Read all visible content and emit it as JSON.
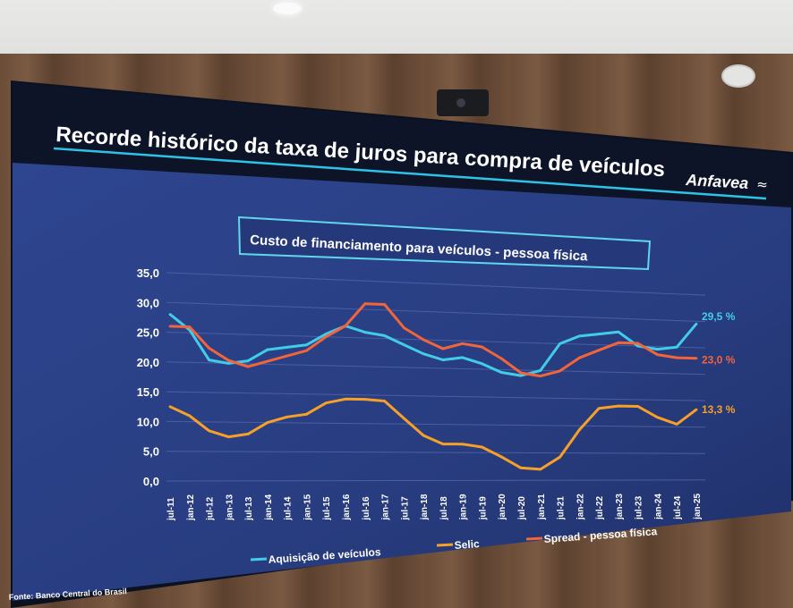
{
  "slide": {
    "title": "Recorde histórico da taxa de juros para compra de veículos",
    "logo_text": "Anfavea",
    "chart_heading": "Custo de financiamento para veículos - pessoa física",
    "source": "Fonte: Banco Central do Brasil"
  },
  "colors": {
    "panel_background": "#2b3f86",
    "title_bar": "#0e1428",
    "accent_line": "#2ec3e6",
    "aquisicao": "#41cde6",
    "selic": "#f6a028",
    "spread": "#f2643a"
  },
  "chart_data": {
    "type": "line",
    "title": "Custo de financiamento para veículos - pessoa física",
    "ylim": [
      0,
      35
    ],
    "yticks": [
      "0,0",
      "5,0",
      "10,0",
      "15,0",
      "20,0",
      "25,0",
      "30,0",
      "35,0"
    ],
    "x": [
      "jul-11",
      "jan-12",
      "jul-12",
      "jan-13",
      "jul-13",
      "jan-14",
      "jul-14",
      "jan-15",
      "jul-15",
      "jan-16",
      "jul-16",
      "jan-17",
      "jul-17",
      "jan-18",
      "jul-18",
      "jan-19",
      "jul-19",
      "jan-20",
      "jul-20",
      "jan-21",
      "jul-21",
      "jan-22",
      "jul-22",
      "jan-23",
      "jul-23",
      "jan-24",
      "jul-24",
      "jan-25"
    ],
    "grid": true,
    "legend_position": "bottom",
    "series": [
      {
        "name": "Aquisição de veículos",
        "color": "#41cde6",
        "end_label": "29,5 %",
        "values": [
          28.0,
          25.5,
          20.5,
          20.0,
          20.5,
          22.5,
          23.0,
          23.5,
          25.5,
          27.0,
          26.0,
          25.5,
          24.0,
          22.5,
          21.5,
          22.0,
          21.0,
          19.5,
          19.0,
          20.0,
          25.0,
          26.5,
          27.0,
          27.5,
          25.0,
          24.5,
          25.0,
          29.5
        ]
      },
      {
        "name": "Selic",
        "color": "#f6a028",
        "end_label": "13,3 %",
        "values": [
          12.5,
          11.0,
          8.5,
          7.5,
          8.0,
          10.0,
          11.0,
          11.5,
          13.5,
          14.25,
          14.25,
          14.0,
          11.0,
          8.0,
          6.5,
          6.5,
          6.0,
          4.25,
          2.25,
          2.0,
          4.25,
          9.25,
          13.25,
          13.75,
          13.75,
          11.75,
          10.5,
          13.3
        ]
      },
      {
        "name": "Spread - pessoa física",
        "color": "#f2643a",
        "end_label": "23,0 %",
        "values": [
          26.0,
          26.0,
          22.5,
          20.5,
          19.5,
          20.5,
          21.5,
          22.5,
          25.0,
          27.0,
          31.0,
          31.0,
          27.0,
          25.0,
          23.5,
          24.5,
          24.0,
          22.0,
          19.5,
          19.0,
          20.0,
          22.5,
          24.0,
          25.5,
          25.5,
          23.5,
          23.0,
          23.0
        ]
      }
    ]
  }
}
